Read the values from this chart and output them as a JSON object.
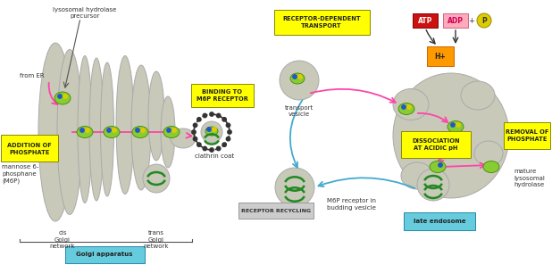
{
  "background_color": "#ffffff",
  "fig_width": 6.18,
  "fig_height": 2.97,
  "dpi": 100,
  "golgi_color": "#c8c9b8",
  "golgi_stroke": "#aaaaaa",
  "label_addition_phosphate": "ADDITION OF\nPHOSPHATE",
  "label_mannose": "mannose 6-\nphosphane\n(M6P)",
  "label_binding": "BINDING TO\nM6P RECEPTOR",
  "label_receptor_transport": "RECEPTOR-DEPENDENT\nTRANSPORT",
  "label_clathrin": "clathrin coat",
  "label_transport_vesicle": "transport\nvesicle",
  "label_receptor_recycling": "RECEPTOR RECYCLING",
  "label_m6p_receptor": "M6P receptor in\nbudding vesicle",
  "label_dissociation": "DISSOCIATION\nAT ACIDIC pH",
  "label_removal": "REMOVAL OF\nPHOSPHATE",
  "label_mature": "mature\nlysosomal\nhydrolase",
  "label_late_endosome": "late endosome",
  "label_cis": "cis\nGolgi\nnetwork",
  "label_trans": "trans\nGolgi\nnetwork",
  "label_golgi_apparatus": "Golgi apparatus",
  "label_from_er": "from ER",
  "label_lysosomal": "lysosomal hydrolase\nprecursor",
  "label_atp": "ATP",
  "label_adp": "ADP",
  "label_h": "H+",
  "yellow_box_color": "#ffff00",
  "cyan_box_color": "#66ccdd",
  "red_box_color": "#cc1111",
  "pink_box_color": "#ffaabb",
  "orange_box_color": "#ff9900",
  "yellow_circle_color": "#ddcc00",
  "arrow_pink_color": "#ff44aa",
  "arrow_blue_color": "#44aacc",
  "arrow_black_color": "#333333",
  "green_blob_color": "#88cc33",
  "green_curl_color": "#228822",
  "blue_dot_color": "#2255cc",
  "yellow_dot_color": "#ddcc00"
}
